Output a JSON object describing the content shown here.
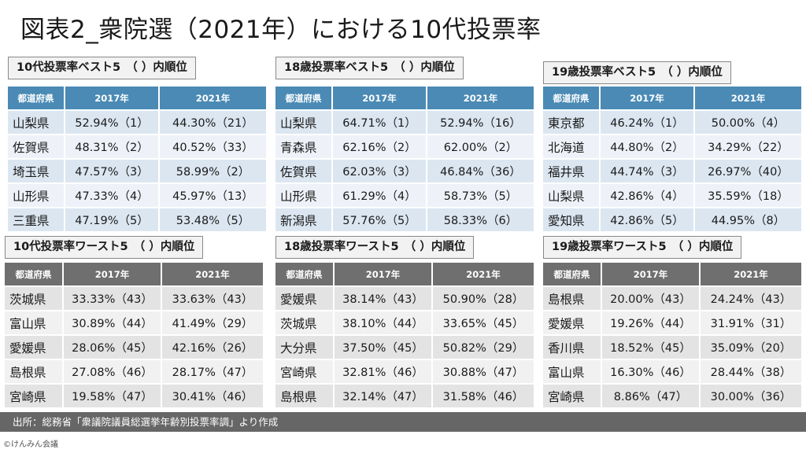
{
  "title": "図表2_衆院選（2021年）における10代投票率",
  "columns": {
    "pref": "都道府県",
    "y2017": "2017年",
    "y2021": "2021年"
  },
  "panels": [
    {
      "label": "10代投票率ベスト5　（ ）内順位",
      "rows": [
        {
          "pref": "山梨県",
          "v2017": "52.94%（1）",
          "v2021": "44.30%（21）"
        },
        {
          "pref": "佐賀県",
          "v2017": "48.31%（2）",
          "v2021": "40.52%（33）"
        },
        {
          "pref": "埼玉県",
          "v2017": "47.57%（3）",
          "v2021": "58.99%（2）"
        },
        {
          "pref": "山形県",
          "v2017": "47.33%（4）",
          "v2021": "45.97%（13）"
        },
        {
          "pref": "三重県",
          "v2017": "47.19%（5）",
          "v2021": "53.48%（5）"
        }
      ]
    },
    {
      "label": "18歳投票率ベスト5　（ ）内順位",
      "rows": [
        {
          "pref": "山梨県",
          "v2017": "64.71%（1）",
          "v2021": "52.94%（16）"
        },
        {
          "pref": "青森県",
          "v2017": "62.16%（2）",
          "v2021": "62.00%（2）"
        },
        {
          "pref": "佐賀県",
          "v2017": "62.03%（3）",
          "v2021": "46.84%（36）"
        },
        {
          "pref": "山形県",
          "v2017": "61.29%（4）",
          "v2021": "58.73%（5）"
        },
        {
          "pref": "新潟県",
          "v2017": "57.76%（5）",
          "v2021": "58.33%（6）"
        }
      ]
    },
    {
      "label": "19歳投票率ベスト5　（ ）内順位",
      "rows": [
        {
          "pref": "東京都",
          "v2017": "46.24%（1）",
          "v2021": "50.00%（4）"
        },
        {
          "pref": "北海道",
          "v2017": "44.80%（2）",
          "v2021": "34.29%（22）"
        },
        {
          "pref": "福井県",
          "v2017": "44.74%（3）",
          "v2021": "26.97%（40）"
        },
        {
          "pref": "山梨県",
          "v2017": "42.86%（4）",
          "v2021": "35.59%（18）"
        },
        {
          "pref": "愛知県",
          "v2017": "42.86%（5）",
          "v2021": "44.95%（8）"
        }
      ]
    },
    {
      "label": "10代投票率ワースト5　（ ）内順位",
      "rows": [
        {
          "pref": "茨城県",
          "v2017": "33.33%（43）",
          "v2021": "33.63%（43）"
        },
        {
          "pref": "富山県",
          "v2017": "30.89%（44）",
          "v2021": "41.49%（29）"
        },
        {
          "pref": "愛媛県",
          "v2017": "28.06%（45）",
          "v2021": "42.16%（26）"
        },
        {
          "pref": "島根県",
          "v2017": "27.08%（46）",
          "v2021": "28.17%（47）"
        },
        {
          "pref": "宮崎県",
          "v2017": "19.58%（47）",
          "v2021": "30.41%（46）"
        }
      ]
    },
    {
      "label": "18歳投票率ワースト5　（ ）内順位",
      "rows": [
        {
          "pref": "愛媛県",
          "v2017": "38.14%（43）",
          "v2021": "50.90%（28）"
        },
        {
          "pref": "茨城県",
          "v2017": "38.10%（44）",
          "v2021": "33.65%（45）"
        },
        {
          "pref": "大分県",
          "v2017": "37.50%（45）",
          "v2021": "50.82%（29）"
        },
        {
          "pref": "宮崎県",
          "v2017": "32.81%（46）",
          "v2021": "30.88%（47）"
        },
        {
          "pref": "島根県",
          "v2017": "32.14%（47）",
          "v2021": "31.58%（46）"
        }
      ]
    },
    {
      "label": "19歳投票率ワースト5　（ ）内順位",
      "rows": [
        {
          "pref": "島根県",
          "v2017": "20.00%（43）",
          "v2021": "24.24%（43）"
        },
        {
          "pref": "愛媛県",
          "v2017": "19.26%（44）",
          "v2021": "31.91%（31）"
        },
        {
          "pref": "香川県",
          "v2017": "18.52%（45）",
          "v2021": "35.09%（20）"
        },
        {
          "pref": "富山県",
          "v2017": "16.30%（46）",
          "v2021": "28.44%（38）"
        },
        {
          "pref": "宮崎県",
          "v2017": "8.86%（47）",
          "v2021": "30.00%（36）"
        }
      ]
    }
  ],
  "source": "出所：総務省「衆議院議員総選挙年齢別投票率調」より作成",
  "credit": "©けんみん会議"
}
